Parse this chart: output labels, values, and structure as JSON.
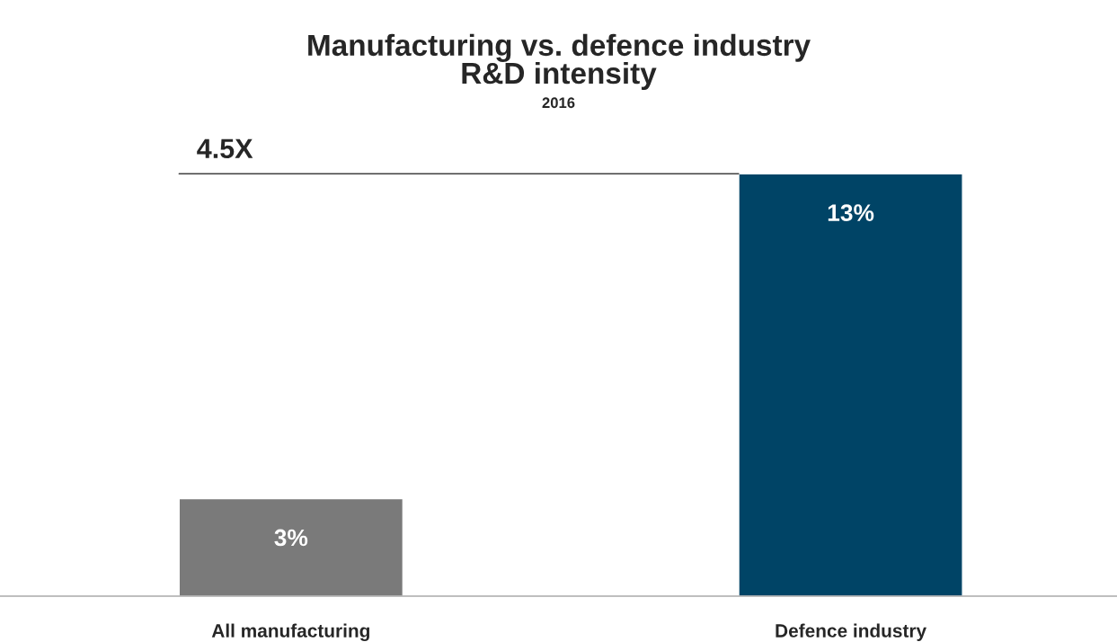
{
  "chart_data": {
    "type": "bar",
    "title": "Manufacturing vs. defence industry\nR&D intensity",
    "subtitle": "2016",
    "categories": [
      "All manufacturing",
      "Defence industry"
    ],
    "values": [
      3,
      13
    ],
    "colors": [
      "#7a7a7a",
      "#004466"
    ],
    "value_labels": [
      "3%",
      "13%"
    ],
    "ref_lines": [
      {
        "axis": "y",
        "value": 13,
        "label": "4.5X",
        "color": "#404040"
      }
    ],
    "grid": false,
    "legend": false
  }
}
